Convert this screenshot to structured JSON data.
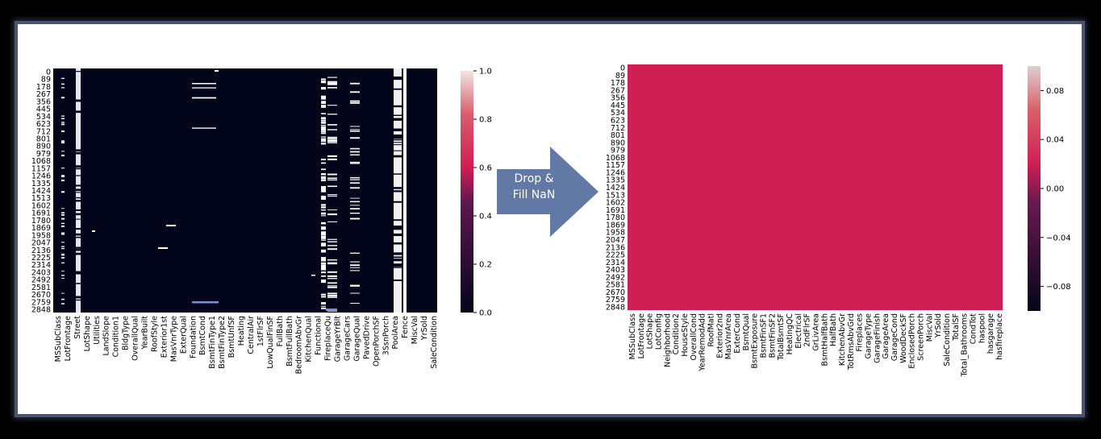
{
  "arrow": {
    "line1": "Drop &",
    "line2": "Fill NaN",
    "color": "#6279a5"
  },
  "chart_data": [
    {
      "type": "heatmap",
      "description_scope": "missing-value map before cleaning",
      "row_tick_labels": [
        "0",
        "89",
        "178",
        "267",
        "356",
        "445",
        "534",
        "623",
        "712",
        "801",
        "890",
        "979",
        "1068",
        "1157",
        "1246",
        "1335",
        "1424",
        "1513",
        "1602",
        "1691",
        "1780",
        "1869",
        "1958",
        "2047",
        "2136",
        "2225",
        "2314",
        "2403",
        "2492",
        "2581",
        "2670",
        "2759",
        "2848"
      ],
      "column_tick_labels": [
        "MSSubClass",
        "LotFrontage",
        "Street",
        "LotShape",
        "Utilities",
        "LandSlope",
        "Condition1",
        "BldgType",
        "OverallQual",
        "YearBuilt",
        "RoofStyle",
        "Exterior1st",
        "MasVnrType",
        "ExterQual",
        "Foundation",
        "BsmtCond",
        "BsmtFinType1",
        "BsmtFinType2",
        "BsmtUnfSF",
        "Heating",
        "CentralAir",
        "1stFlrSF",
        "LowQualFinSF",
        "FullBath",
        "BsmtFullBath",
        "BedroomAbvGr",
        "KitchenQual",
        "Functional",
        "FireplaceQu",
        "GarageYrBlt",
        "GarageCars",
        "GarageQual",
        "PavedDrive",
        "OpenPorchSF",
        "3SsnPorch",
        "PoolArea",
        "Fence",
        "MiscVal",
        "YrSold",
        "SaleCondition"
      ],
      "colorbar": {
        "min": 0.0,
        "max": 1.0,
        "ticks": [
          "0.0",
          "0.2",
          "0.4",
          "0.6",
          "0.8",
          "1.0"
        ]
      },
      "colors": {
        "low": "#03051a",
        "mid": "#cf1e53",
        "high": "#f0e6e2"
      }
    },
    {
      "type": "heatmap",
      "description_scope": "missing-value map after cleaning",
      "row_tick_labels": [
        "0",
        "89",
        "178",
        "267",
        "356",
        "445",
        "534",
        "623",
        "712",
        "801",
        "890",
        "979",
        "1068",
        "1157",
        "1246",
        "1335",
        "1424",
        "1513",
        "1602",
        "1691",
        "1780",
        "1869",
        "1958",
        "2047",
        "2136",
        "2225",
        "2314",
        "2403",
        "2492",
        "2581",
        "2670",
        "2759",
        "2848"
      ],
      "column_tick_labels": [
        "MSSubClass",
        "LotFrontage",
        "LotShape",
        "LotConfig",
        "Neighborhood",
        "Condition2",
        "HouseStyle",
        "OverallCond",
        "YearRemodAdd",
        "RoofMatl",
        "Exterior2nd",
        "MasVnrArea",
        "ExterCond",
        "BsmtQual",
        "BsmtExposure",
        "BsmtFinSF1",
        "BsmtFinSF2",
        "TotalBsmtSF",
        "HeatingQC",
        "Electrical",
        "2ndFlrSF",
        "GrLivArea",
        "BsmtHalfBath",
        "HalfBath",
        "KitchenAbvGr",
        "TotRmsAbvGrd",
        "Fireplaces",
        "GarageType",
        "GarageFinish",
        "GarageArea",
        "GarageCond",
        "WoodDeckSF",
        "EnclosedPorch",
        "ScreenPorch",
        "MiscVal",
        "YrSold",
        "SaleCondition",
        "TotalSF",
        "Total_Bathrooms",
        "CondTot",
        "haspool",
        "hasgarage",
        "hasfireplace"
      ],
      "colorbar": {
        "min": -0.1,
        "max": 0.1,
        "ticks": [
          "−0.08",
          "−0.04",
          "0.00",
          "0.04",
          "0.08"
        ]
      },
      "cell_color": "#cf1e53"
    }
  ]
}
